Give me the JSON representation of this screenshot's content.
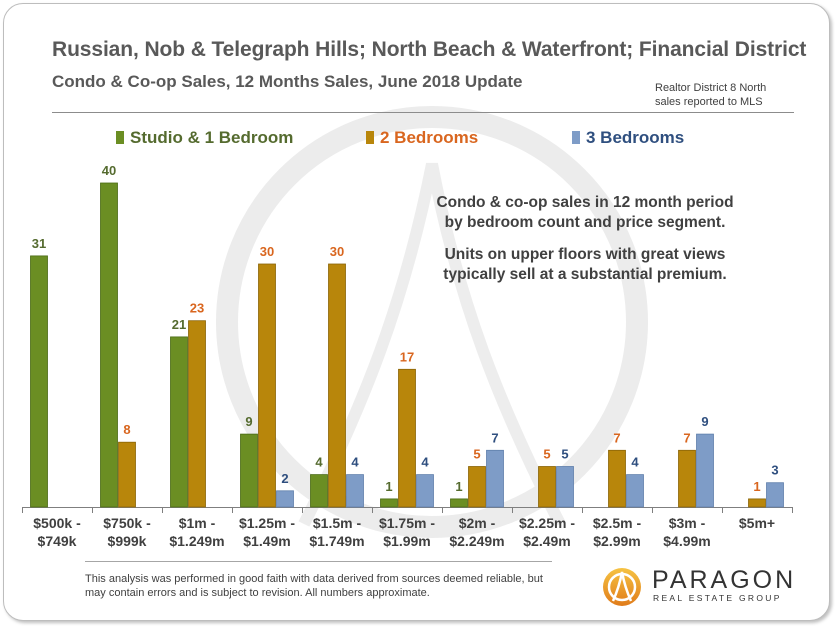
{
  "title": "Russian, Nob & Telegraph Hills; North Beach & Waterfront; Financial District",
  "subtitle": "Condo & Co-op Sales, 12 Months Sales, June 2018 Update",
  "note_line1": "Realtor District  8 North",
  "note_line2": "sales reported to MLS",
  "annotation_line1": "Condo & co-op sales in 12 month period",
  "annotation_line2": "by bedroom count and price segment.",
  "annotation_line3": "Units on upper floors with great views",
  "annotation_line4": "typically sell at a substantial premium.",
  "footnote": "This analysis was performed in good faith with data derived from sources deemed reliable, but may contain errors and is subject to revision.  All numbers approximate.",
  "logo": {
    "name": "PARAGON",
    "sub": "REAL ESTATE GROUP"
  },
  "colors": {
    "studio": "#6b8e23",
    "two": "#b8860b",
    "three": "#7e9cc7",
    "studio_label": "#556b2f",
    "two_label": "#d9661f",
    "three_label": "#2f4f7f"
  },
  "chart_data": {
    "type": "bar",
    "categories": [
      [
        "$500k -",
        "$749k"
      ],
      [
        "$750k -",
        "$999k"
      ],
      [
        "$1m -",
        "$1.249m"
      ],
      [
        "$1.25m -",
        "$1.49m"
      ],
      [
        "$1.5m -",
        "$1.749m"
      ],
      [
        "$1.75m -",
        "$1.99m"
      ],
      [
        "$2m -",
        "$2.249m"
      ],
      [
        "$2.25m -",
        "$2.49m"
      ],
      [
        "$2.5m -",
        "$2.99m"
      ],
      [
        "$3m -",
        "$4.99m"
      ],
      [
        "$5m+"
      ]
    ],
    "series": [
      {
        "name": "Studio & 1 Bedroom",
        "values": [
          31,
          40,
          21,
          9,
          4,
          1,
          1,
          null,
          null,
          null,
          null
        ]
      },
      {
        "name": "2 Bedrooms",
        "values": [
          null,
          8,
          23,
          30,
          30,
          17,
          5,
          5,
          7,
          7,
          1
        ]
      },
      {
        "name": "3 Bedrooms",
        "values": [
          null,
          null,
          null,
          2,
          4,
          4,
          7,
          5,
          4,
          9,
          3
        ]
      }
    ],
    "ylim": [
      0,
      42
    ]
  }
}
